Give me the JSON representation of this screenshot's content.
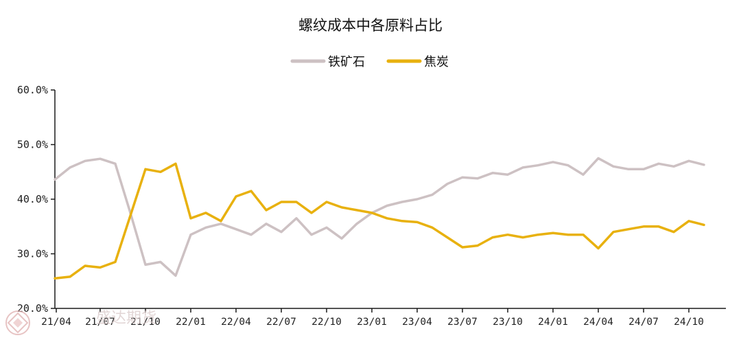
{
  "chart_data": {
    "type": "line",
    "title": "螺纹成本中各原料占比",
    "xlabel": "",
    "ylabel": "",
    "ylim": [
      20,
      60
    ],
    "yticks": [
      "20.0%",
      "30.0%",
      "40.0%",
      "50.0%",
      "60.0%"
    ],
    "ytick_values": [
      20,
      30,
      40,
      50,
      60
    ],
    "x_tick_labels": [
      "21/04",
      "21/07",
      "21/10",
      "22/01",
      "22/04",
      "22/07",
      "22/10",
      "23/01",
      "23/04",
      "23/07",
      "23/10",
      "24/01",
      "24/04",
      "24/07",
      "24/10"
    ],
    "x_tick_months": [
      "2021-04",
      "2021-07",
      "2021-10",
      "2022-01",
      "2022-04",
      "2022-07",
      "2022-10",
      "2023-01",
      "2023-04",
      "2023-07",
      "2023-10",
      "2024-01",
      "2024-04",
      "2024-07",
      "2024-10"
    ],
    "x": [
      "2021-04",
      "2021-05",
      "2021-06",
      "2021-07",
      "2021-08",
      "2021-09",
      "2021-10",
      "2021-11",
      "2021-12",
      "2022-01",
      "2022-02",
      "2022-03",
      "2022-04",
      "2022-05",
      "2022-06",
      "2022-07",
      "2022-08",
      "2022-09",
      "2022-10",
      "2022-11",
      "2022-12",
      "2023-01",
      "2023-02",
      "2023-03",
      "2023-04",
      "2023-05",
      "2023-06",
      "2023-07",
      "2023-08",
      "2023-09",
      "2023-10",
      "2023-11",
      "2023-12",
      "2024-01",
      "2024-02",
      "2024-03",
      "2024-04",
      "2024-05",
      "2024-06",
      "2024-07",
      "2024-08",
      "2024-09",
      "2024-10",
      "2024-11"
    ],
    "series": [
      {
        "name": "铁矿石",
        "color": "#cdc1c3",
        "values": [
          43.6,
          45.8,
          47.0,
          47.4,
          46.5,
          37.5,
          28.0,
          28.5,
          26.0,
          33.5,
          34.8,
          35.5,
          34.5,
          33.5,
          35.5,
          34.0,
          36.5,
          33.5,
          34.8,
          32.8,
          35.5,
          37.5,
          38.8,
          39.5,
          40.0,
          40.8,
          42.8,
          44.0,
          43.8,
          44.8,
          44.5,
          45.8,
          46.2,
          46.8,
          46.2,
          44.5,
          47.5,
          46.0,
          45.5,
          45.5,
          46.5,
          46.0,
          47.0,
          46.3
        ]
      },
      {
        "name": "焦炭",
        "color": "#e8b10f",
        "values": [
          25.5,
          25.8,
          27.8,
          27.5,
          28.5,
          37.0,
          45.5,
          45.0,
          46.5,
          36.5,
          37.5,
          36.0,
          40.5,
          41.5,
          38.0,
          39.5,
          39.5,
          37.5,
          39.5,
          38.5,
          38.0,
          37.5,
          36.5,
          36.0,
          35.8,
          34.8,
          33.0,
          31.2,
          31.5,
          33.0,
          33.5,
          33.0,
          33.5,
          33.8,
          33.5,
          33.5,
          31.0,
          34.0,
          34.5,
          35.0,
          35.0,
          34.0,
          36.0,
          35.3
        ]
      }
    ],
    "grid": false,
    "legend_position": "top-center"
  },
  "watermark": {
    "text": "盛达期货",
    "color": "#d9c9c9"
  }
}
